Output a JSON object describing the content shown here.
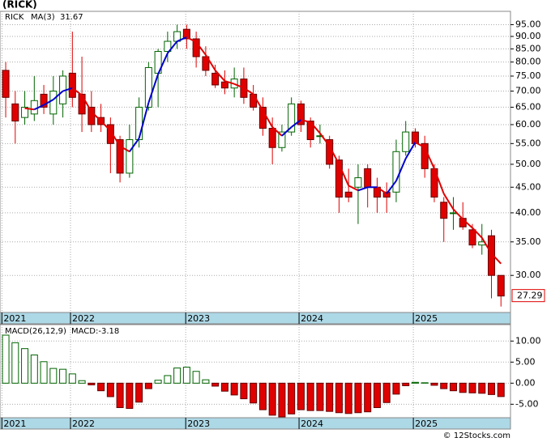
{
  "chart_data": [
    {
      "type": "candlestick",
      "title": "(RICK)",
      "ticker": "RICK",
      "log_scale": true,
      "grid": true,
      "up_color": "#006400",
      "down_color": "#e00000",
      "rising_color": "#0000cc",
      "falling_color": "#e00000",
      "xlim": [
        -0.6,
        53.0
      ],
      "ylim": [
        25.3,
        101
      ],
      "xticks": [
        {
          "value": -0.4,
          "label": "2021"
        },
        {
          "value": 6.8,
          "label": "2022"
        },
        {
          "value": 18.9,
          "label": "2023"
        },
        {
          "value": 30.8,
          "label": "2024"
        },
        {
          "value": 42.8,
          "label": "2025"
        }
      ],
      "yticks": [
        {
          "value": 30,
          "label": "30.00"
        },
        {
          "value": 35,
          "label": "35.00"
        },
        {
          "value": 40,
          "label": "40.00"
        },
        {
          "value": 45,
          "label": "45.00"
        },
        {
          "value": 50,
          "label": "50.00"
        },
        {
          "value": 55,
          "label": "55.00"
        },
        {
          "value": 60,
          "label": "60.00"
        },
        {
          "value": 65,
          "label": "65.00"
        },
        {
          "value": 70,
          "label": "70.00"
        },
        {
          "value": 75,
          "label": "75.00"
        },
        {
          "value": 80,
          "label": "80.00"
        },
        {
          "value": 85,
          "label": "85.00"
        },
        {
          "value": 90,
          "label": "90.00"
        },
        {
          "value": 95,
          "label": "95.00"
        }
      ],
      "open": [
        77,
        66,
        62,
        63,
        69,
        63,
        66,
        76,
        69,
        65,
        62,
        60,
        56,
        48,
        56,
        65,
        76,
        84,
        88,
        93,
        89,
        82,
        76,
        73,
        71,
        74,
        69,
        65,
        59,
        54,
        58,
        66,
        61,
        57,
        56,
        51,
        44,
        45,
        49,
        45,
        44,
        44,
        53,
        58,
        55,
        49,
        42,
        40,
        39,
        37,
        34.5,
        36,
        30
      ],
      "high": [
        80,
        70,
        70,
        75,
        72,
        75,
        77,
        92,
        82,
        70,
        66,
        62,
        57,
        60,
        68,
        80,
        85,
        92,
        95,
        95,
        92,
        86,
        79,
        77,
        78,
        78,
        72,
        68,
        62,
        60,
        68,
        67,
        62,
        60,
        57,
        52,
        49,
        50,
        50,
        47,
        46,
        56,
        61,
        59,
        57,
        50,
        43,
        43,
        42,
        38,
        38,
        37,
        30
      ],
      "low": [
        62,
        55,
        60,
        61,
        63,
        60,
        62,
        65,
        58,
        58,
        58,
        48,
        46,
        47,
        54,
        64,
        65,
        80,
        85,
        85,
        78,
        75,
        71,
        69,
        68,
        66,
        64,
        57,
        50,
        53,
        57,
        58,
        54,
        55,
        49,
        40,
        42,
        38,
        41,
        40,
        40,
        42,
        52,
        54,
        47,
        42,
        35,
        37,
        37,
        34,
        33,
        27,
        26
      ],
      "close": [
        68,
        61,
        65,
        67,
        65,
        70,
        75,
        68,
        63,
        60,
        60,
        55,
        48,
        56,
        65,
        78,
        84,
        88,
        92,
        89,
        82,
        77,
        72,
        71,
        74,
        68,
        65,
        59,
        54,
        58,
        66,
        60,
        56,
        57,
        50,
        43,
        43,
        47,
        45,
        43,
        43,
        53,
        58,
        55,
        49,
        43,
        39,
        40,
        37.5,
        34.5,
        35,
        30,
        27.29
      ],
      "series": [
        {
          "name": "MA(3)",
          "values": [
            null,
            null,
            64.67,
            64.33,
            65.67,
            67.33,
            70,
            71,
            68.67,
            63.67,
            61,
            58.33,
            54.33,
            53,
            56.33,
            66.33,
            75.67,
            83.33,
            88,
            89.67,
            87.67,
            82.67,
            77,
            73.33,
            72.33,
            71,
            69,
            64,
            59.33,
            57,
            59.33,
            61.33,
            60.67,
            57.67,
            54.33,
            50,
            45.33,
            44.33,
            45,
            45,
            43.67,
            46.33,
            51.33,
            55.33,
            54,
            49,
            43.67,
            40.67,
            38.83,
            37.33,
            35.67,
            33.17,
            31.67
          ]
        }
      ]
    },
    {
      "type": "bar",
      "title": "MACD(26,12,9)",
      "label": "MACD:-3.18",
      "grid": true,
      "pos_color": "#006400",
      "neg_color": "#e00000",
      "xlim": [
        -0.6,
        53.0
      ],
      "ylim": [
        -8.2,
        13.9
      ],
      "xticks": [
        {
          "value": -0.4,
          "label": "2021"
        },
        {
          "value": 6.8,
          "label": "2022"
        },
        {
          "value": 18.9,
          "label": "2023"
        },
        {
          "value": 30.8,
          "label": "2024"
        },
        {
          "value": 42.8,
          "label": "2025"
        }
      ],
      "yticks": [
        {
          "value": -5,
          "label": "-5.00"
        },
        {
          "value": 0,
          "label": "0.00"
        },
        {
          "value": 5,
          "label": "5.00"
        },
        {
          "value": 10,
          "label": "10.00"
        }
      ],
      "values": [
        11.4,
        9.6,
        8.2,
        6.7,
        5.1,
        3.5,
        3.3,
        2.2,
        0.6,
        -0.4,
        -1.8,
        -3.2,
        -5.8,
        -6.0,
        -4.5,
        -1.3,
        0.7,
        1.8,
        3.6,
        3.8,
        2.8,
        0.8,
        -0.7,
        -1.9,
        -2.8,
        -3.7,
        -4.7,
        -6.3,
        -7.6,
        -8.0,
        -7.3,
        -6.3,
        -6.5,
        -6.5,
        -6.7,
        -7.0,
        -7.2,
        -7.0,
        -6.8,
        -5.8,
        -4.6,
        -2.6,
        -0.6,
        0.2,
        0.1,
        -0.5,
        -1.3,
        -1.8,
        -2.2,
        -2.3,
        -2.4,
        -2.7,
        -3.18
      ]
    },
    {
      "type": "note",
      "title": "© 12Stocks.com"
    }
  ]
}
